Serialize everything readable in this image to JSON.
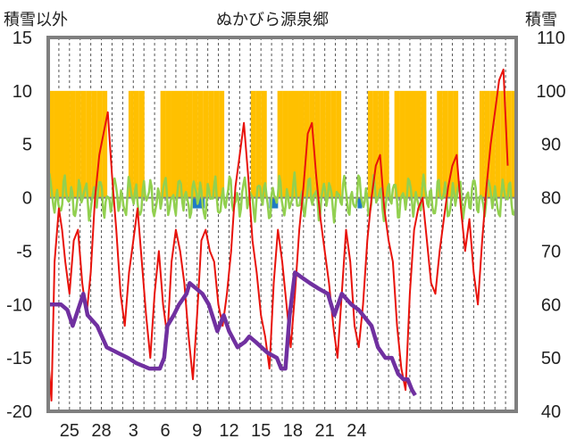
{
  "chart_data": {
    "type": "line",
    "title": "ぬかびら源泉郷",
    "left_axis": {
      "label": "積雪以外",
      "range": [
        -20,
        15
      ],
      "ticks": [
        "15",
        "10",
        "5",
        "0",
        "-5",
        "-10",
        "-15",
        "-20"
      ]
    },
    "right_axis": {
      "label": "積雪",
      "range": [
        40,
        110
      ],
      "ticks": [
        "110",
        "100",
        "90",
        "80",
        "70",
        "60",
        "50",
        "40"
      ]
    },
    "x_axis": {
      "range": [
        0,
        44
      ],
      "ticks": [
        {
          "x": 2,
          "label": "25"
        },
        {
          "x": 5,
          "label": "28"
        },
        {
          "x": 8,
          "label": "3"
        },
        {
          "x": 11,
          "label": "6"
        },
        {
          "x": 14,
          "label": "9"
        },
        {
          "x": 17,
          "label": "12"
        },
        {
          "x": 20,
          "label": "15"
        },
        {
          "x": 23,
          "label": "18"
        },
        {
          "x": 26,
          "label": "21"
        },
        {
          "x": 29,
          "label": "24"
        }
      ]
    },
    "grid": "vertical dashed, daily",
    "colors": {
      "temperature": "#e8120b",
      "precipitation": "#ffc000",
      "sunshine_bars": "#1f7bc4",
      "other": "#92d050",
      "snow_depth": "#7030a0",
      "frame": "#7f7f7f"
    },
    "series": [
      {
        "axis": "left",
        "x": [
          0,
          0.3,
          0.6,
          1.0,
          1.3,
          1.6,
          2.0,
          2.4,
          2.8,
          3.2,
          3.6,
          4.0,
          4.4,
          4.8,
          5.2,
          5.6,
          6.0,
          6.4,
          6.8,
          7.2,
          7.6,
          8.0,
          8.4,
          8.8,
          9.2,
          9.6,
          10.0,
          10.4,
          10.8,
          11.2,
          11.6,
          12.0,
          12.4,
          12.8,
          13.2,
          13.6,
          14.0,
          14.4,
          14.8,
          15.2,
          15.6,
          16.0,
          16.4,
          16.8,
          17.2,
          17.6,
          18.0,
          18.4,
          18.8,
          19.2,
          19.6,
          20.0,
          20.4,
          20.8,
          21.2,
          21.6,
          22.0,
          22.4,
          22.8,
          23.2,
          23.6,
          24.0,
          24.4,
          24.8,
          25.2,
          25.6,
          26.0,
          26.4,
          26.8,
          27.2,
          27.6,
          28.0,
          28.4,
          28.8,
          29.2,
          29.6,
          30.0,
          30.4,
          30.8,
          31.2,
          31.6,
          32.0,
          32.4,
          32.8,
          33.2,
          33.6,
          34.0,
          34.4,
          34.8,
          35.2,
          35.6,
          36.0,
          36.4,
          36.8,
          37.2,
          37.6,
          38.0,
          38.4,
          38.8,
          39.2,
          39.6,
          40.0,
          40.4,
          40.8,
          41.2,
          41.6,
          42.0,
          42.4,
          42.8,
          43.2
        ],
        "values": [
          -15,
          -19,
          -6,
          -1,
          -3,
          -6,
          -9,
          -4,
          -3,
          -8,
          -11,
          -7,
          0,
          4,
          6,
          8,
          2,
          -3,
          -9,
          -12,
          -7,
          -4,
          -1,
          -6,
          -11,
          -15,
          -9,
          -5,
          -10,
          -13,
          -6,
          -3,
          -5,
          -8,
          -13,
          -17,
          -11,
          -4,
          -3,
          -5,
          -6,
          -10,
          -12,
          -9,
          -5,
          1,
          4,
          7,
          2,
          -4,
          -7,
          -11,
          -13,
          -16,
          -8,
          -3,
          -6,
          -10,
          -14,
          -9,
          -3,
          1,
          6,
          7,
          2,
          -2,
          -5,
          -8,
          -12,
          -15,
          -9,
          -3,
          -6,
          -12,
          -14,
          -10,
          -4,
          0,
          3,
          4,
          -1,
          -4,
          -6,
          -12,
          -16,
          -18,
          -9,
          -3,
          -1,
          0,
          -4,
          -8,
          -9,
          -5,
          -2,
          1,
          3,
          4,
          -1,
          -5,
          -2,
          -7,
          -10,
          -4,
          1,
          5,
          8,
          11,
          12,
          3
        ]
      },
      {
        "axis": "right",
        "x": [
          0,
          1.2,
          1.8,
          2.3,
          3.3,
          3.7,
          4.6,
          5.5,
          6.5,
          7.5,
          8.3,
          9.5,
          10.5,
          10.9,
          11.2,
          11.8,
          12.3,
          13.0,
          13.3,
          14.5,
          15.1,
          15.9,
          16.5,
          17.0,
          17.8,
          18.5,
          18.9,
          19.5,
          20.6,
          21.5,
          21.9,
          22.3,
          22.7,
          23.2,
          23.9,
          24.6,
          25.4,
          26.3,
          26.9,
          27.6,
          28.5,
          29.2,
          29.6,
          30.4,
          31.0,
          31.7,
          32.3,
          32.9,
          33.4,
          33.8,
          34.2,
          34.5
        ],
        "values": [
          60,
          60,
          59,
          56,
          62,
          58,
          56,
          52,
          51,
          50,
          49,
          48,
          48,
          50,
          56,
          58,
          60,
          62,
          64,
          62,
          60,
          55,
          58,
          55,
          52,
          53,
          54,
          53,
          51,
          50,
          48,
          48,
          58,
          66,
          65,
          64,
          63,
          62,
          58,
          62,
          60,
          59,
          58,
          56,
          52,
          50,
          50,
          47,
          46,
          46,
          44,
          43
        ]
      }
    ]
  }
}
